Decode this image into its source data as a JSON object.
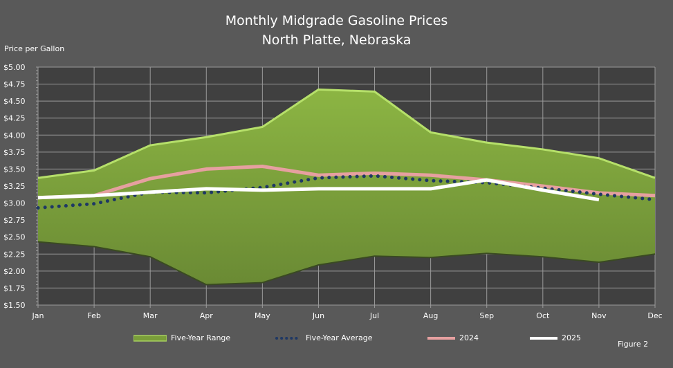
{
  "chart_data": {
    "type": "line",
    "title": "Monthly Midgrade Gasoline Prices",
    "subtitle": "North Platte, Nebraska",
    "ylabel": "Price per Gallon",
    "xlabel": "",
    "ylim": [
      1.5,
      5.0
    ],
    "yticks": [
      "$1.50",
      "$1.75",
      "$2.00",
      "$2.25",
      "$2.50",
      "$2.75",
      "$3.00",
      "$3.25",
      "$3.50",
      "$3.75",
      "$4.00",
      "$4.25",
      "$4.50",
      "$4.75",
      "$5.00"
    ],
    "categories": [
      "Jan",
      "Feb",
      "Mar",
      "Apr",
      "May",
      "Jun",
      "Jul",
      "Aug",
      "Sep",
      "Oct",
      "Nov",
      "Dec"
    ],
    "grid": true,
    "legend_position": "bottom",
    "range": {
      "name": "Five-Year Range",
      "high": [
        3.37,
        3.48,
        3.85,
        3.97,
        4.12,
        4.67,
        4.64,
        4.04,
        3.89,
        3.79,
        3.66,
        3.37
      ],
      "low": [
        2.43,
        2.36,
        2.21,
        1.8,
        1.83,
        2.09,
        2.22,
        2.2,
        2.26,
        2.21,
        2.13,
        2.25
      ],
      "color": "#7a9e3a"
    },
    "series": [
      {
        "name": "Five-Year Average",
        "values": [
          2.93,
          2.99,
          3.16,
          3.15,
          3.23,
          3.37,
          3.4,
          3.33,
          3.3,
          3.22,
          3.13,
          3.05
        ],
        "color": "#1f3864",
        "style": "dotted"
      },
      {
        "name": "2024",
        "values": [
          3.08,
          3.11,
          3.36,
          3.5,
          3.54,
          3.41,
          3.44,
          3.41,
          3.34,
          3.25,
          3.15,
          3.11
        ],
        "color": "#e6a0a0",
        "style": "solid"
      },
      {
        "name": "2025",
        "values": [
          3.08,
          3.11,
          3.16,
          3.21,
          3.19,
          3.21,
          3.21,
          3.21,
          3.34,
          3.19,
          3.05,
          null
        ],
        "color": "#ffffff",
        "style": "solid"
      }
    ],
    "annotation": "Figure 2"
  }
}
